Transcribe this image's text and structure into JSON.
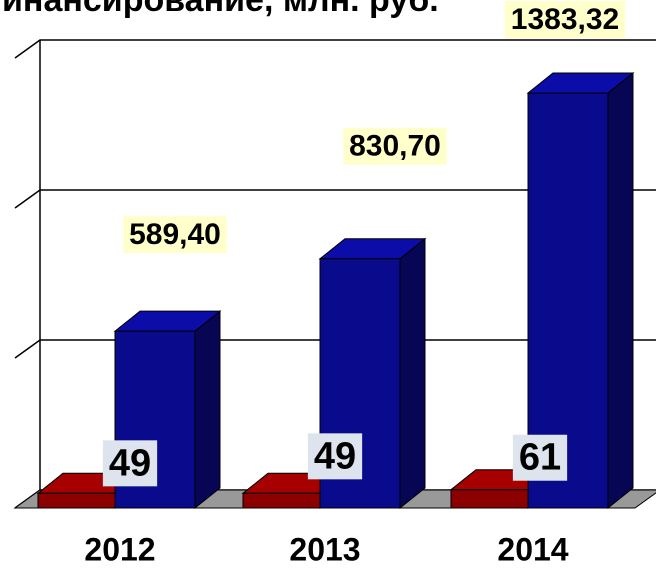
{
  "chart_data": {
    "type": "bar3d",
    "title": "инансирование, млн. руб.",
    "categories": [
      "2012",
      "2013",
      "2014"
    ],
    "series": [
      {
        "color": "#8b0000",
        "values": [
          49,
          49,
          61
        ]
      },
      {
        "color": "#0a0a8c",
        "values": [
          589.4,
          830.7,
          1383.32
        ],
        "value_labels": [
          "589,40",
          "830,70",
          "1383,32"
        ]
      }
    ],
    "ylim": [
      0,
      1500
    ],
    "yticks": [
      0,
      500,
      1000,
      1500
    ],
    "grid": true
  }
}
